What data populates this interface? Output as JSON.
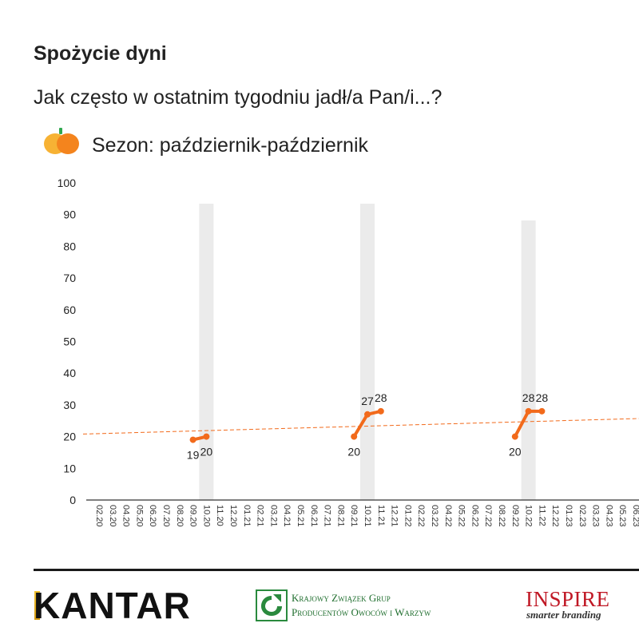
{
  "header": {
    "title": "Spożycie dyni",
    "question": "Jak często w ostatnim tygodniu jadł/a Pan/i...?",
    "season_label": "Sezon: październik-październik",
    "season_icon": "pumpkin-icon"
  },
  "colors": {
    "line": "#f26a1b",
    "trend": "#f26a1b",
    "highlight_band": "#ebebeb",
    "axis": "#333333",
    "pumpkin_left": "#f7b234",
    "pumpkin_right": "#f4841d",
    "stem": "#2fa84f"
  },
  "chart_data": {
    "type": "line",
    "title": "",
    "xlabel": "",
    "ylabel": "",
    "ylim": [
      0,
      100
    ],
    "yticks": [
      0,
      10,
      20,
      30,
      40,
      50,
      60,
      70,
      80,
      90,
      100
    ],
    "grid": false,
    "categories": [
      "02.20",
      "03.20",
      "04.20",
      "05.20",
      "06.20",
      "07.20",
      "08.20",
      "09.20",
      "10.20",
      "11.20",
      "12.20",
      "01.21",
      "02.21",
      "03.21",
      "04.21",
      "05.21",
      "06.21",
      "07.21",
      "08.21",
      "09.21",
      "10.21",
      "11.21",
      "12.21",
      "01.22",
      "02.22",
      "03.22",
      "04.22",
      "05.22",
      "06.22",
      "07.22",
      "08.22",
      "09.22",
      "10.22",
      "11.22",
      "12.22",
      "01.23",
      "02.23",
      "03.23",
      "04.23",
      "05.23",
      "06.23"
    ],
    "highlighted_months": [
      "10.20",
      "10.21",
      "10.22"
    ],
    "series": [
      {
        "segments": [
          {
            "x": [
              "09.20",
              "10.20"
            ],
            "values": [
              19,
              20
            ]
          },
          {
            "x": [
              "09.21",
              "10.21",
              "11.21"
            ],
            "values": [
              20,
              27,
              28
            ]
          },
          {
            "x": [
              "09.22",
              "10.22",
              "11.22"
            ],
            "values": [
              20,
              28,
              28
            ]
          }
        ]
      }
    ],
    "trendline": {
      "style": "dashed",
      "start": {
        "x": "02.20",
        "y": 20.8
      },
      "end": {
        "x": "06.23",
        "y": 25.7
      }
    },
    "data_labels": [
      {
        "text": "19",
        "x": "09.20",
        "value": 19,
        "position": "below"
      },
      {
        "text": "20",
        "x": "10.20",
        "value": 20,
        "position": "below"
      },
      {
        "text": "20",
        "x": "09.21",
        "value": 20,
        "position": "below"
      },
      {
        "text": "27",
        "x": "10.21",
        "value": 27,
        "position": "above"
      },
      {
        "text": "28",
        "x": "11.21",
        "value": 28,
        "position": "above"
      },
      {
        "text": "20",
        "x": "09.22",
        "value": 20,
        "position": "below"
      },
      {
        "text": "28",
        "x": "10.22",
        "value": 28,
        "position": "above"
      },
      {
        "text": "28",
        "x": "11.22",
        "value": 28,
        "position": "above"
      }
    ]
  },
  "footer": {
    "kantar": "KANTAR",
    "kzg_line1": "Krajowy Związek Grup",
    "kzg_line2": "Producentów Owoców i Warzyw",
    "inspire": "INSPIRE",
    "inspire_tagline": "smarter branding"
  }
}
